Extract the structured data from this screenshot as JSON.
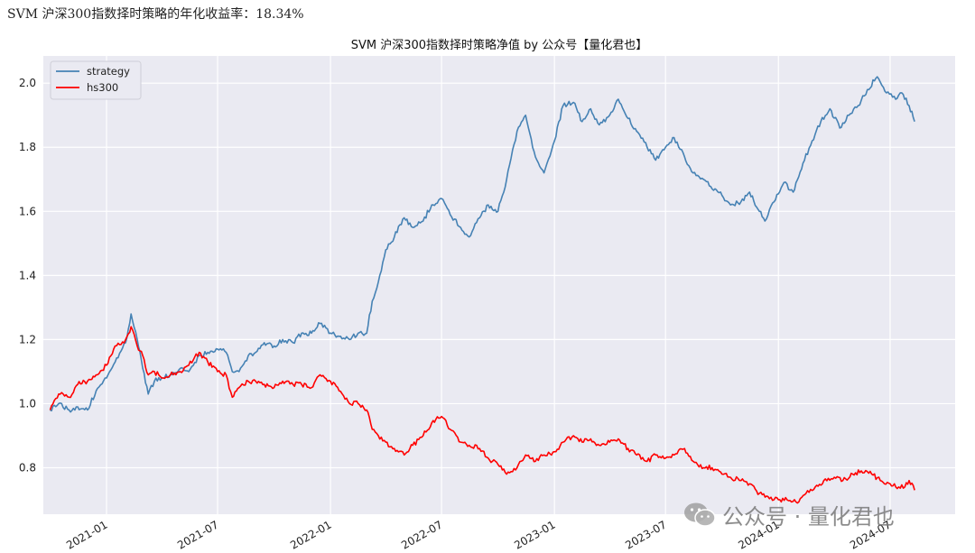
{
  "header": {
    "result_text": "SVM 沪深300指数择时策略的年化收益率：18.34%"
  },
  "watermark": {
    "text": "公众号 · 量化君也",
    "icon": "wechat-icon"
  },
  "colors": {
    "plot_background": "#eaeaf2",
    "grid": "#ffffff",
    "strategy": "#4682b4",
    "hs300": "#ff0000"
  },
  "chart_data": {
    "type": "line",
    "title": "SVM 沪深300指数择时策略净值  by 公众号【量化君也】",
    "xlabel": "",
    "ylabel": "",
    "x_range": [
      "2020-09-20",
      "2024-10-15"
    ],
    "ylim": [
      0.655,
      2.085
    ],
    "y_ticks": [
      0.8,
      1.0,
      1.2,
      1.4,
      1.6,
      1.8,
      2.0
    ],
    "x_ticks": [
      "2021-01",
      "2021-07",
      "2022-01",
      "2022-07",
      "2023-01",
      "2023-07",
      "2024-01",
      "2024-07"
    ],
    "grid": true,
    "legend_position": "top-left",
    "series": [
      {
        "name": "strategy",
        "color": "#4682b4",
        "points": [
          [
            "2020-10-01",
            0.98
          ],
          [
            "2020-10-15",
            1.0
          ],
          [
            "2020-11-01",
            0.98
          ],
          [
            "2020-11-15",
            0.99
          ],
          [
            "2020-12-01",
            0.98
          ],
          [
            "2020-12-15",
            1.04
          ],
          [
            "2021-01-01",
            1.08
          ],
          [
            "2021-01-15",
            1.13
          ],
          [
            "2021-02-01",
            1.19
          ],
          [
            "2021-02-10",
            1.28
          ],
          [
            "2021-02-20",
            1.2
          ],
          [
            "2021-03-01",
            1.11
          ],
          [
            "2021-03-10",
            1.03
          ],
          [
            "2021-03-20",
            1.07
          ],
          [
            "2021-04-01",
            1.08
          ],
          [
            "2021-04-15",
            1.09
          ],
          [
            "2021-05-01",
            1.11
          ],
          [
            "2021-05-15",
            1.1
          ],
          [
            "2021-06-01",
            1.15
          ],
          [
            "2021-06-15",
            1.16
          ],
          [
            "2021-07-01",
            1.17
          ],
          [
            "2021-07-15",
            1.16
          ],
          [
            "2021-07-25",
            1.1
          ],
          [
            "2021-08-05",
            1.1
          ],
          [
            "2021-08-20",
            1.15
          ],
          [
            "2021-09-01",
            1.16
          ],
          [
            "2021-09-15",
            1.19
          ],
          [
            "2021-10-01",
            1.18
          ],
          [
            "2021-10-15",
            1.2
          ],
          [
            "2021-11-01",
            1.19
          ],
          [
            "2021-11-15",
            1.22
          ],
          [
            "2021-12-01",
            1.22
          ],
          [
            "2021-12-15",
            1.25
          ],
          [
            "2022-01-01",
            1.22
          ],
          [
            "2022-01-15",
            1.21
          ],
          [
            "2022-02-01",
            1.2
          ],
          [
            "2022-02-15",
            1.22
          ],
          [
            "2022-03-01",
            1.22
          ],
          [
            "2022-03-10",
            1.32
          ],
          [
            "2022-03-20",
            1.38
          ],
          [
            "2022-04-01",
            1.48
          ],
          [
            "2022-04-15",
            1.52
          ],
          [
            "2022-05-01",
            1.58
          ],
          [
            "2022-05-15",
            1.55
          ],
          [
            "2022-06-01",
            1.57
          ],
          [
            "2022-06-15",
            1.62
          ],
          [
            "2022-07-01",
            1.64
          ],
          [
            "2022-07-15",
            1.59
          ],
          [
            "2022-08-01",
            1.55
          ],
          [
            "2022-08-15",
            1.52
          ],
          [
            "2022-09-01",
            1.58
          ],
          [
            "2022-09-15",
            1.62
          ],
          [
            "2022-10-01",
            1.6
          ],
          [
            "2022-10-15",
            1.7
          ],
          [
            "2022-11-01",
            1.85
          ],
          [
            "2022-11-15",
            1.9
          ],
          [
            "2022-12-01",
            1.77
          ],
          [
            "2022-12-15",
            1.72
          ],
          [
            "2023-01-01",
            1.82
          ],
          [
            "2023-01-15",
            1.93
          ],
          [
            "2023-02-01",
            1.94
          ],
          [
            "2023-02-15",
            1.88
          ],
          [
            "2023-03-01",
            1.92
          ],
          [
            "2023-03-15",
            1.87
          ],
          [
            "2023-04-01",
            1.9
          ],
          [
            "2023-04-15",
            1.95
          ],
          [
            "2023-05-01",
            1.89
          ],
          [
            "2023-05-15",
            1.85
          ],
          [
            "2023-06-01",
            1.8
          ],
          [
            "2023-06-15",
            1.76
          ],
          [
            "2023-07-01",
            1.8
          ],
          [
            "2023-07-15",
            1.83
          ],
          [
            "2023-08-01",
            1.77
          ],
          [
            "2023-08-15",
            1.72
          ],
          [
            "2023-09-01",
            1.7
          ],
          [
            "2023-09-15",
            1.67
          ],
          [
            "2023-10-01",
            1.65
          ],
          [
            "2023-10-15",
            1.62
          ],
          [
            "2023-11-01",
            1.63
          ],
          [
            "2023-11-15",
            1.66
          ],
          [
            "2023-12-01",
            1.6
          ],
          [
            "2023-12-10",
            1.57
          ],
          [
            "2023-12-25",
            1.63
          ],
          [
            "2024-01-10",
            1.69
          ],
          [
            "2024-01-25",
            1.66
          ],
          [
            "2024-02-10",
            1.75
          ],
          [
            "2024-02-25",
            1.82
          ],
          [
            "2024-03-10",
            1.88
          ],
          [
            "2024-03-25",
            1.92
          ],
          [
            "2024-04-10",
            1.86
          ],
          [
            "2024-04-25",
            1.9
          ],
          [
            "2024-05-10",
            1.93
          ],
          [
            "2024-05-25",
            1.98
          ],
          [
            "2024-06-10",
            2.02
          ],
          [
            "2024-06-25",
            1.97
          ],
          [
            "2024-07-10",
            1.95
          ],
          [
            "2024-07-20",
            1.97
          ],
          [
            "2024-08-01",
            1.93
          ],
          [
            "2024-08-10",
            1.88
          ]
        ]
      },
      {
        "name": "hs300",
        "color": "#ff0000",
        "points": [
          [
            "2020-10-01",
            0.98
          ],
          [
            "2020-10-15",
            1.03
          ],
          [
            "2020-11-01",
            1.02
          ],
          [
            "2020-11-15",
            1.06
          ],
          [
            "2020-12-01",
            1.07
          ],
          [
            "2020-12-15",
            1.09
          ],
          [
            "2021-01-01",
            1.12
          ],
          [
            "2021-01-15",
            1.18
          ],
          [
            "2021-02-01",
            1.2
          ],
          [
            "2021-02-10",
            1.24
          ],
          [
            "2021-02-20",
            1.18
          ],
          [
            "2021-03-01",
            1.15
          ],
          [
            "2021-03-10",
            1.09
          ],
          [
            "2021-03-20",
            1.1
          ],
          [
            "2021-04-01",
            1.08
          ],
          [
            "2021-04-15",
            1.09
          ],
          [
            "2021-05-01",
            1.1
          ],
          [
            "2021-05-15",
            1.12
          ],
          [
            "2021-06-01",
            1.16
          ],
          [
            "2021-06-15",
            1.13
          ],
          [
            "2021-07-01",
            1.1
          ],
          [
            "2021-07-15",
            1.09
          ],
          [
            "2021-07-25",
            1.02
          ],
          [
            "2021-08-05",
            1.05
          ],
          [
            "2021-08-20",
            1.07
          ],
          [
            "2021-09-01",
            1.07
          ],
          [
            "2021-09-15",
            1.06
          ],
          [
            "2021-10-01",
            1.05
          ],
          [
            "2021-10-15",
            1.07
          ],
          [
            "2021-11-01",
            1.06
          ],
          [
            "2021-11-15",
            1.06
          ],
          [
            "2021-12-01",
            1.05
          ],
          [
            "2021-12-15",
            1.09
          ],
          [
            "2022-01-01",
            1.07
          ],
          [
            "2022-01-15",
            1.04
          ],
          [
            "2022-02-01",
            1.0
          ],
          [
            "2022-02-15",
            1.0
          ],
          [
            "2022-03-01",
            0.98
          ],
          [
            "2022-03-10",
            0.92
          ],
          [
            "2022-03-20",
            0.9
          ],
          [
            "2022-04-01",
            0.88
          ],
          [
            "2022-04-15",
            0.86
          ],
          [
            "2022-05-01",
            0.84
          ],
          [
            "2022-05-15",
            0.87
          ],
          [
            "2022-06-01",
            0.9
          ],
          [
            "2022-06-15",
            0.94
          ],
          [
            "2022-07-01",
            0.96
          ],
          [
            "2022-07-15",
            0.92
          ],
          [
            "2022-08-01",
            0.88
          ],
          [
            "2022-08-15",
            0.87
          ],
          [
            "2022-09-01",
            0.86
          ],
          [
            "2022-09-15",
            0.83
          ],
          [
            "2022-10-01",
            0.81
          ],
          [
            "2022-10-15",
            0.78
          ],
          [
            "2022-11-01",
            0.8
          ],
          [
            "2022-11-15",
            0.84
          ],
          [
            "2022-12-01",
            0.82
          ],
          [
            "2022-12-15",
            0.84
          ],
          [
            "2023-01-01",
            0.85
          ],
          [
            "2023-01-15",
            0.88
          ],
          [
            "2023-02-01",
            0.9
          ],
          [
            "2023-02-15",
            0.88
          ],
          [
            "2023-03-01",
            0.89
          ],
          [
            "2023-03-15",
            0.87
          ],
          [
            "2023-04-01",
            0.88
          ],
          [
            "2023-04-15",
            0.89
          ],
          [
            "2023-05-01",
            0.86
          ],
          [
            "2023-05-15",
            0.84
          ],
          [
            "2023-06-01",
            0.82
          ],
          [
            "2023-06-15",
            0.84
          ],
          [
            "2023-07-01",
            0.83
          ],
          [
            "2023-07-15",
            0.84
          ],
          [
            "2023-08-01",
            0.86
          ],
          [
            "2023-08-15",
            0.82
          ],
          [
            "2023-09-01",
            0.8
          ],
          [
            "2023-09-15",
            0.8
          ],
          [
            "2023-10-01",
            0.78
          ],
          [
            "2023-10-15",
            0.77
          ],
          [
            "2023-11-01",
            0.76
          ],
          [
            "2023-11-15",
            0.75
          ],
          [
            "2023-12-01",
            0.72
          ],
          [
            "2023-12-15",
            0.71
          ],
          [
            "2024-01-01",
            0.7
          ],
          [
            "2024-01-15",
            0.7
          ],
          [
            "2024-02-01",
            0.69
          ],
          [
            "2024-02-15",
            0.72
          ],
          [
            "2024-03-01",
            0.74
          ],
          [
            "2024-03-15",
            0.76
          ],
          [
            "2024-04-01",
            0.77
          ],
          [
            "2024-04-15",
            0.76
          ],
          [
            "2024-05-01",
            0.78
          ],
          [
            "2024-05-15",
            0.79
          ],
          [
            "2024-06-01",
            0.78
          ],
          [
            "2024-06-15",
            0.76
          ],
          [
            "2024-07-01",
            0.75
          ],
          [
            "2024-07-15",
            0.74
          ],
          [
            "2024-07-25",
            0.74
          ],
          [
            "2024-08-01",
            0.76
          ],
          [
            "2024-08-10",
            0.73
          ]
        ]
      }
    ]
  }
}
